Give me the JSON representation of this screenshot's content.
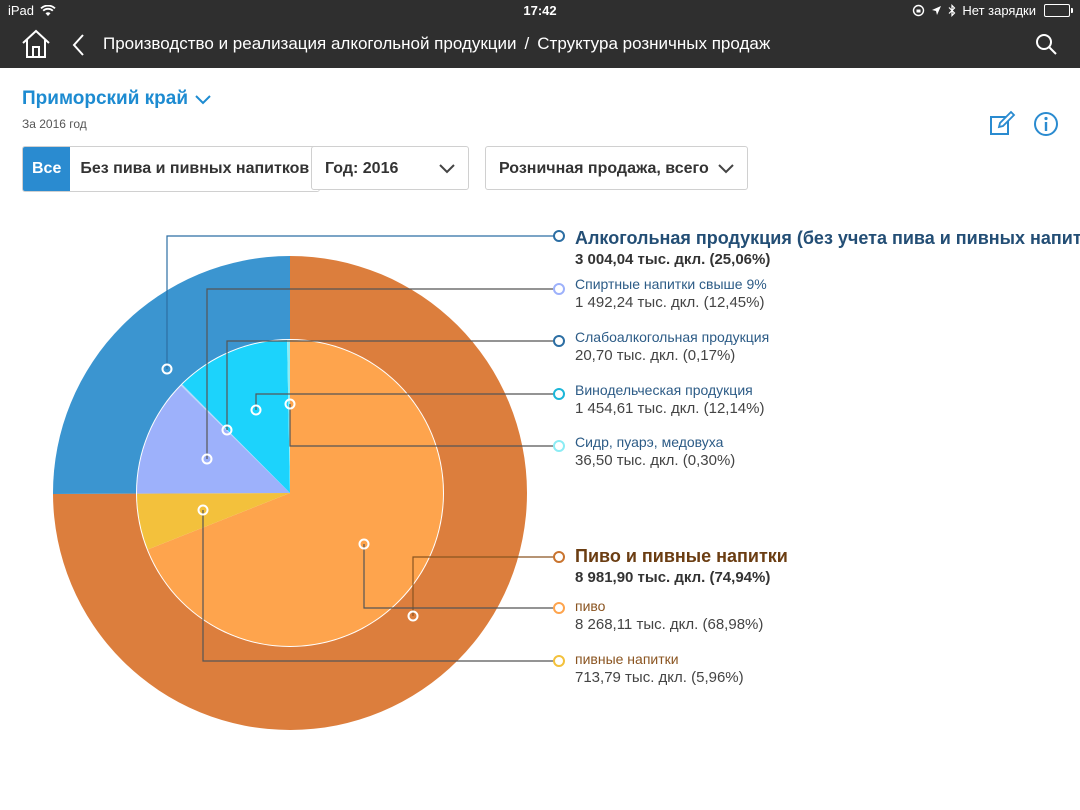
{
  "statusbar": {
    "device": "iPad",
    "time": "17:42",
    "charging": "Нет зарядки"
  },
  "navbar": {
    "breadcrumb_parent": "Производство и реализация алкогольной продукции",
    "separator": "/",
    "breadcrumb_current": "Структура розничных продаж"
  },
  "region": {
    "name": "Приморский край",
    "period": "За 2016 год"
  },
  "filters": {
    "segment_all": "Все",
    "segment_no_beer": "Без пива и пивных напитков",
    "year_select": "Год: 2016",
    "sales_select": "Розничная продажа, всего"
  },
  "colors": {
    "alcohol_group": "#3b95d0",
    "beer_group": "#dc7e3d",
    "spirits": "#9db1fb",
    "low_alcohol": "#b5d8fb",
    "wine": "#1cd3fc",
    "cider": "#8cecf4",
    "beer": "#fea44d",
    "beer_drinks": "#f3c13c"
  },
  "chart_data": {
    "type": "pie",
    "title": "Структура розничных продаж",
    "outer": [
      {
        "name": "Алкогольная продукция (без учета пива и пивных напитков)",
        "value": 3004.04,
        "label": "3 004,04 тыс. дкл. (25,06%)",
        "color_key": "alcohol_group"
      },
      {
        "name": "Пиво и пивные напитки",
        "value": 8981.9,
        "label": "8 981,90 тыс. дкл. (74,94%)",
        "color_key": "beer_group"
      }
    ],
    "inner": [
      {
        "name": "пиво",
        "value": 8268.11,
        "label": "8 268,11 тыс. дкл. (68,98%)",
        "color_key": "beer"
      },
      {
        "name": "пивные напитки",
        "value": 713.79,
        "label": "713,79 тыс. дкл. (5,96%)",
        "color_key": "beer_drinks"
      },
      {
        "name": "Спиртные напитки свыше 9%",
        "value": 1492.24,
        "label": "1 492,24 тыс. дкл. (12,45%)",
        "color_key": "spirits"
      },
      {
        "name": "Слабоалкогольная продукция",
        "value": 20.7,
        "label": "20,70 тыс. дкл. (0,17%)",
        "color_key": "low_alcohol"
      },
      {
        "name": "Винодельческая продукция",
        "value": 1454.61,
        "label": "1 454,61 тыс. дкл. (12,14%)",
        "color_key": "wine"
      },
      {
        "name": "Сидр, пуарэ, медовуха",
        "value": 36.5,
        "label": "36,50 тыс. дкл. (0,30%)",
        "color_key": "cider"
      }
    ]
  }
}
